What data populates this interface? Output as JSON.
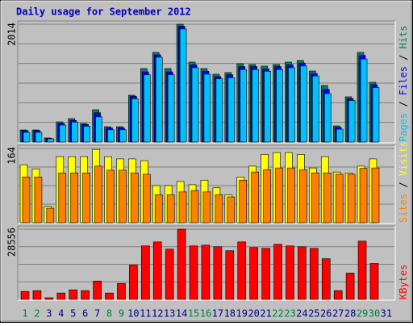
{
  "chart_data": {
    "type": "bar",
    "title": "Daily usage for September 2012",
    "categories": [
      1,
      2,
      3,
      4,
      5,
      6,
      7,
      8,
      9,
      10,
      11,
      12,
      13,
      14,
      15,
      16,
      17,
      18,
      19,
      20,
      21,
      22,
      23,
      24,
      25,
      26,
      27,
      28,
      29,
      30,
      31
    ],
    "weekend": [
      0,
      1,
      7,
      8,
      14,
      15,
      21,
      22,
      28,
      29
    ],
    "weekend_color": "#008040",
    "category_color": "#000080",
    "panels": [
      {
        "ylim": [
          0,
          2014
        ],
        "yticks": [
          2014
        ],
        "series": [
          {
            "name": "Hits",
            "color": "#00805c",
            "values": [
              207,
              207,
              69,
              345,
              400,
              317,
              552,
              262,
              262,
              800,
              1256,
              1532,
              1256,
              2014,
              1366,
              1256,
              1159,
              1187,
              1339,
              1325,
              1297,
              1325,
              1366,
              1394,
              1214,
              966,
              276,
              773,
              1532,
              1021,
              null
            ]
          },
          {
            "name": "Files",
            "color": "#0000ff",
            "values": [
              195,
              195,
              62,
              320,
              370,
              300,
              500,
              240,
              240,
              780,
              1200,
              1490,
              1200,
              1980,
              1320,
              1210,
              1120,
              1150,
              1290,
              1290,
              1250,
              1290,
              1320,
              1350,
              1170,
              900,
              250,
              740,
              1480,
              980,
              null
            ]
          },
          {
            "name": "Pages",
            "color": "#00c0ff",
            "values": [
              166,
              166,
              55,
              290,
              340,
              270,
              430,
              210,
              210,
              740,
              1150,
              1450,
              1150,
              1932,
              1270,
              1160,
              1080,
              1100,
              1240,
              1240,
              1210,
              1240,
              1270,
              1300,
              1130,
              830,
              220,
              710,
              1420,
              930,
              null
            ]
          }
        ]
      },
      {
        "ylim": [
          0,
          164
        ],
        "yticks": [
          164
        ],
        "series": [
          {
            "name": "Visits",
            "color": "#ffff00",
            "values": [
              128,
              119,
              36,
              146,
              146,
              146,
              162,
              146,
              141,
              141,
              137,
              82,
              82,
              91,
              84,
              94,
              77,
              62,
              101,
              125,
              151,
              155,
              155,
              151,
              121,
              146,
              112,
              110,
              125,
              141,
              null
            ]
          },
          {
            "name": "Sites",
            "color": "#ff8000",
            "values": [
              101,
              101,
              32,
              110,
              110,
              110,
              125,
              116,
              116,
              110,
              107,
              62,
              62,
              68,
              71,
              68,
              62,
              57,
              94,
              112,
              117,
              121,
              121,
              117,
              110,
              110,
              107,
              107,
              120,
              121,
              null
            ]
          }
        ]
      },
      {
        "ylim": [
          0,
          28556
        ],
        "yticks": [
          28556
        ],
        "series": [
          {
            "name": "KBytes",
            "color": "#ff0000",
            "values": [
              3245,
              3570,
              650,
              2596,
              3894,
              3570,
              7464,
              2596,
              6490,
              13954,
              21742,
              23364,
              20444,
              28556,
              21742,
              22066,
              21417,
              19795,
              23364,
              21093,
              20768,
              22391,
              21742,
              21417,
              20768,
              16550,
              3570,
              10709,
              23689,
              14603,
              null
            ]
          }
        ]
      }
    ]
  }
}
